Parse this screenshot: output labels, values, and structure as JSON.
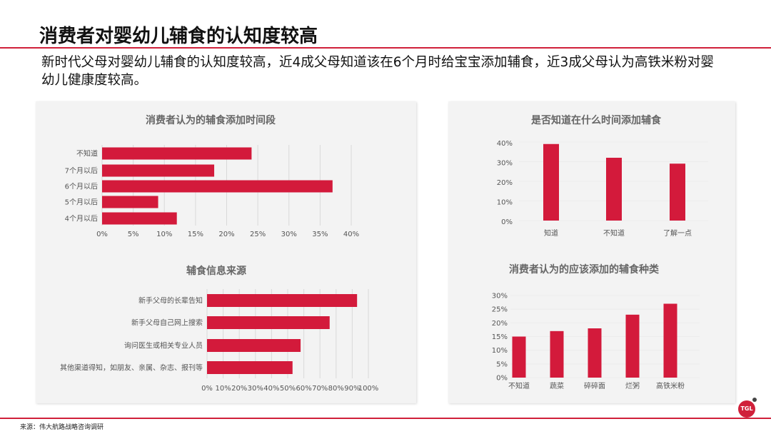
{
  "header": {
    "title": "消费者对婴幼儿辅食的认知度较高",
    "subtitle": "新时代父母对婴幼儿辅食的认知度较高，近4成父母知道该在6个月时给宝宝添加辅食，近3成父母认为高铁米粉对婴幼儿健康度较高。"
  },
  "footer": {
    "source": "来源：伟大航路战略咨询调研",
    "logo_text": "TGL"
  },
  "colors": {
    "bar": "#d31a3b",
    "accent": "#d0203a"
  },
  "chart_data": [
    {
      "id": "timing",
      "type": "bar",
      "orientation": "horizontal",
      "title": "消费者认为的辅食添加时间段",
      "categories": [
        "不知道",
        "7个月以后",
        "6个月以后",
        "5个月以后",
        "4个月以后"
      ],
      "values": [
        24,
        18,
        37,
        9,
        12
      ],
      "xlim": [
        0,
        40
      ],
      "ticks": [
        "0%",
        "5%",
        "10%",
        "15%",
        "20%",
        "25%",
        "30%",
        "35%",
        "40%"
      ],
      "grid": true
    },
    {
      "id": "source",
      "type": "bar",
      "orientation": "horizontal",
      "title": "辅食信息来源",
      "categories": [
        "新手父母的长辈告知",
        "新手父母自己网上搜索",
        "询问医生或相关专业人员",
        "其他渠道得知，如朋友、亲属、杂志、报刊等"
      ],
      "values": [
        93,
        76,
        58,
        53
      ],
      "xlim": [
        0,
        100
      ],
      "ticks": [
        "0%",
        "10%",
        "20%",
        "30%",
        "40%",
        "50%",
        "60%",
        "70%",
        "80%",
        "90%",
        "100%"
      ],
      "grid": true
    },
    {
      "id": "know",
      "type": "bar",
      "orientation": "vertical",
      "title": "是否知道在什么时间添加辅食",
      "categories": [
        "知道",
        "不知道",
        "了解一点"
      ],
      "values": [
        39,
        32,
        29
      ],
      "ylim": [
        0,
        40
      ],
      "ticks": [
        "0%",
        "10%",
        "20%",
        "30%",
        "40%"
      ],
      "grid": true
    },
    {
      "id": "types",
      "type": "bar",
      "orientation": "vertical",
      "title": "消费者认为的应该添加的辅食种类",
      "categories": [
        "不知道",
        "蔬菜",
        "碎碎面",
        "烂粥",
        "高铁米粉"
      ],
      "values": [
        15,
        17,
        18,
        23,
        27
      ],
      "ylim": [
        0,
        30
      ],
      "ticks": [
        "0%",
        "5%",
        "10%",
        "15%",
        "20%",
        "25%",
        "30%"
      ],
      "grid": true
    }
  ]
}
